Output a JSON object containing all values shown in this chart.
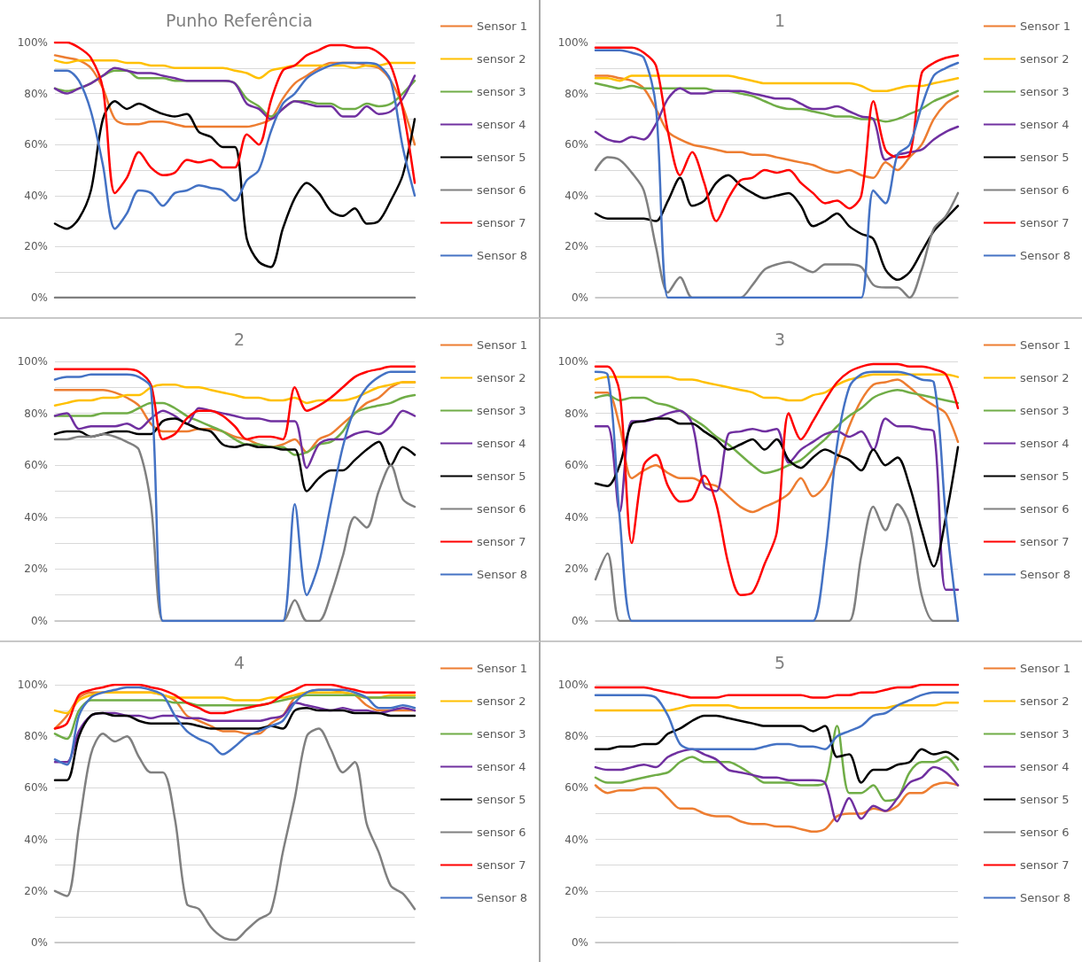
{
  "chart_data": [
    {
      "type": "line",
      "title": "Punho Referência",
      "categories": [
        null,
        null,
        null,
        null,
        null,
        null,
        null,
        null,
        null,
        null,
        null,
        null,
        null,
        null,
        null,
        null,
        null,
        null,
        null,
        null,
        null,
        null,
        null,
        null,
        null,
        null,
        null,
        null,
        null,
        null,
        null
      ],
      "ylim": [
        0,
        100
      ],
      "yticks": [
        {
          "value": 0,
          "label": "0%"
        },
        {
          "value": 10,
          "label": null
        },
        {
          "value": 20,
          "label": "20%"
        },
        {
          "value": 30,
          "label": null
        },
        {
          "value": 40,
          "label": "40%"
        },
        {
          "value": 50,
          "label": null
        },
        {
          "value": 60,
          "label": "60%"
        },
        {
          "value": 70,
          "label": null
        },
        {
          "value": 80,
          "label": "80%"
        },
        {
          "value": 90,
          "label": null
        },
        {
          "value": 100,
          "label": "100%"
        }
      ],
      "grid": "y",
      "legend": "right",
      "tick_labels": "y",
      "marker": "none",
      "line_style": "solid",
      "series": [
        {
          "name": "Sensor 1",
          "color": "#ed7d31",
          "values": [
            95,
            94,
            93,
            90,
            82,
            70,
            68,
            68,
            69,
            69,
            68,
            67,
            67,
            67,
            67,
            67,
            67,
            68,
            70,
            78,
            84,
            87,
            90,
            92,
            92,
            92,
            91,
            90,
            85,
            75,
            60
          ]
        },
        {
          "name": "sensor 2",
          "color": "#ffc000",
          "values": [
            93,
            92,
            93,
            93,
            93,
            93,
            92,
            92,
            91,
            91,
            90,
            90,
            90,
            90,
            90,
            89,
            88,
            86,
            89,
            90,
            91,
            91,
            91,
            91,
            91,
            90,
            91,
            91,
            92,
            92,
            92
          ]
        },
        {
          "name": "sensor 3",
          "color": "#70ad47",
          "values": [
            82,
            81,
            82,
            84,
            87,
            89,
            89,
            86,
            86,
            86,
            85,
            85,
            85,
            85,
            85,
            84,
            78,
            75,
            71,
            74,
            77,
            77,
            76,
            76,
            74,
            74,
            76,
            75,
            76,
            80,
            85
          ]
        },
        {
          "name": "sensor 4",
          "color": "#7030a0",
          "values": [
            82,
            80,
            82,
            84,
            87,
            90,
            89,
            88,
            88,
            87,
            86,
            85,
            85,
            85,
            85,
            84,
            76,
            74,
            70,
            74,
            77,
            76,
            75,
            75,
            71,
            71,
            75,
            72,
            73,
            78,
            87
          ]
        },
        {
          "name": "sensor 5",
          "color": "#000000",
          "values": [
            29,
            27,
            31,
            42,
            70,
            77,
            74,
            76,
            74,
            72,
            71,
            72,
            65,
            63,
            59,
            59,
            23,
            14,
            12,
            27,
            39,
            45,
            41,
            34,
            32,
            35,
            29,
            30,
            38,
            48,
            70
          ]
        },
        {
          "name": "sensor 6",
          "color": "#808080",
          "values": [
            0,
            0,
            0,
            0,
            0,
            0,
            0,
            0,
            0,
            0,
            0,
            0,
            0,
            0,
            0,
            0,
            0,
            0,
            0,
            0,
            0,
            0,
            0,
            0,
            0,
            0,
            0,
            0,
            0,
            0,
            0
          ]
        },
        {
          "name": "sensor 7",
          "color": "#ff0000",
          "values": [
            100,
            100,
            98,
            94,
            82,
            41,
            47,
            57,
            51,
            48,
            49,
            54,
            53,
            54,
            51,
            51,
            64,
            60,
            77,
            89,
            91,
            95,
            97,
            99,
            99,
            98,
            98,
            96,
            91,
            74,
            45
          ]
        },
        {
          "name": "Sensor 8",
          "color": "#4472c4",
          "values": [
            89,
            89,
            85,
            73,
            52,
            27,
            33,
            42,
            41,
            36,
            41,
            42,
            44,
            43,
            42,
            38,
            46,
            50,
            65,
            76,
            80,
            86,
            89,
            91,
            92,
            92,
            92,
            91,
            85,
            59,
            40
          ]
        }
      ]
    },
    {
      "type": "line",
      "title": "1",
      "categories": [
        null,
        null,
        null,
        null,
        null,
        null,
        null,
        null,
        null,
        null,
        null,
        null,
        null,
        null,
        null,
        null,
        null,
        null,
        null,
        null,
        null,
        null,
        null,
        null,
        null,
        null,
        null,
        null,
        null,
        null,
        null
      ],
      "ylim": [
        0,
        100
      ],
      "yticks": [
        {
          "value": 0,
          "label": "0%"
        },
        {
          "value": 10,
          "label": null
        },
        {
          "value": 20,
          "label": "20%"
        },
        {
          "value": 30,
          "label": null
        },
        {
          "value": 40,
          "label": "40%"
        },
        {
          "value": 50,
          "label": null
        },
        {
          "value": 60,
          "label": "60%"
        },
        {
          "value": 70,
          "label": null
        },
        {
          "value": 80,
          "label": "80%"
        },
        {
          "value": 90,
          "label": null
        },
        {
          "value": 100,
          "label": "100%"
        }
      ],
      "grid": "y",
      "legend": "right",
      "tick_labels": "y",
      "marker": "none",
      "line_style": "solid",
      "series": [
        {
          "name": "Sensor 1",
          "color": "#ed7d31",
          "values": [
            87,
            87,
            86,
            85,
            82,
            74,
            65,
            62,
            60,
            59,
            58,
            57,
            57,
            56,
            56,
            55,
            54,
            53,
            52,
            50,
            49,
            50,
            48,
            47,
            53,
            50,
            55,
            60,
            70,
            76,
            79
          ]
        },
        {
          "name": "sensor 2",
          "color": "#ffc000",
          "values": [
            86,
            86,
            85,
            87,
            87,
            87,
            87,
            87,
            87,
            87,
            87,
            87,
            86,
            85,
            84,
            84,
            84,
            84,
            84,
            84,
            84,
            84,
            83,
            81,
            81,
            82,
            83,
            83,
            84,
            85,
            86
          ]
        },
        {
          "name": "sensor 3",
          "color": "#70ad47",
          "values": [
            84,
            83,
            82,
            83,
            82,
            82,
            82,
            82,
            82,
            82,
            81,
            81,
            80,
            79,
            77,
            75,
            74,
            74,
            73,
            72,
            71,
            71,
            70,
            70,
            69,
            70,
            72,
            74,
            77,
            79,
            81
          ]
        },
        {
          "name": "sensor 4",
          "color": "#7030a0",
          "values": [
            65,
            62,
            61,
            63,
            62,
            68,
            78,
            82,
            80,
            80,
            81,
            81,
            81,
            80,
            79,
            78,
            78,
            76,
            74,
            74,
            75,
            73,
            71,
            70,
            54,
            56,
            57,
            58,
            62,
            65,
            67
          ]
        },
        {
          "name": "sensor 5",
          "color": "#000000",
          "values": [
            33,
            31,
            31,
            31,
            31,
            30,
            38,
            47,
            36,
            38,
            45,
            48,
            44,
            41,
            39,
            40,
            41,
            36,
            28,
            30,
            33,
            28,
            25,
            23,
            11,
            7,
            10,
            18,
            26,
            31,
            36
          ]
        },
        {
          "name": "sensor 6",
          "color": "#808080",
          "values": [
            50,
            55,
            54,
            49,
            42,
            20,
            2,
            8,
            0,
            0,
            0,
            0,
            0,
            5,
            11,
            13,
            14,
            12,
            10,
            13,
            13,
            13,
            12,
            5,
            4,
            4,
            0,
            11,
            27,
            32,
            41
          ]
        },
        {
          "name": "sensor 7",
          "color": "#ff0000",
          "values": [
            98,
            98,
            98,
            98,
            96,
            91,
            65,
            48,
            57,
            45,
            30,
            39,
            46,
            47,
            50,
            49,
            50,
            45,
            41,
            37,
            38,
            35,
            40,
            77,
            58,
            55,
            56,
            88,
            92,
            94,
            95
          ]
        },
        {
          "name": "Sensor 8",
          "color": "#4472c4",
          "values": [
            97,
            97,
            97,
            96,
            94,
            75,
            0,
            0,
            0,
            0,
            0,
            0,
            0,
            0,
            0,
            0,
            0,
            0,
            0,
            0,
            0,
            0,
            0,
            42,
            37,
            56,
            60,
            75,
            87,
            90,
            92
          ]
        }
      ]
    },
    {
      "type": "line",
      "title": "2",
      "categories": [
        null,
        null,
        null,
        null,
        null,
        null,
        null,
        null,
        null,
        null,
        null,
        null,
        null,
        null,
        null,
        null,
        null,
        null,
        null,
        null,
        null,
        null,
        null,
        null,
        null,
        null,
        null,
        null,
        null,
        null,
        null
      ],
      "ylim": [
        0,
        100
      ],
      "yticks": [
        {
          "value": 0,
          "label": "0%"
        },
        {
          "value": 10,
          "label": null
        },
        {
          "value": 20,
          "label": "20%"
        },
        {
          "value": 30,
          "label": null
        },
        {
          "value": 40,
          "label": "40%"
        },
        {
          "value": 50,
          "label": null
        },
        {
          "value": 60,
          "label": "60%"
        },
        {
          "value": 70,
          "label": null
        },
        {
          "value": 80,
          "label": "80%"
        },
        {
          "value": 90,
          "label": null
        },
        {
          "value": 100,
          "label": "100%"
        }
      ],
      "grid": "y",
      "legend": "right",
      "tick_labels": "y",
      "marker": "none",
      "line_style": "solid",
      "series": [
        {
          "name": "Sensor 1",
          "color": "#ed7d31",
          "values": [
            89,
            89,
            89,
            89,
            89,
            88,
            86,
            83,
            76,
            73,
            73,
            73,
            74,
            74,
            73,
            71,
            70,
            68,
            67,
            68,
            70,
            65,
            70,
            72,
            76,
            80,
            84,
            86,
            90,
            92,
            92
          ]
        },
        {
          "name": "sensor 2",
          "color": "#ffc000",
          "values": [
            83,
            84,
            85,
            85,
            86,
            86,
            87,
            87,
            90,
            91,
            91,
            90,
            90,
            89,
            88,
            87,
            86,
            86,
            85,
            85,
            86,
            84,
            85,
            85,
            85,
            86,
            88,
            90,
            91,
            92,
            92
          ]
        },
        {
          "name": "sensor 3",
          "color": "#70ad47",
          "values": [
            79,
            79,
            79,
            79,
            80,
            80,
            80,
            82,
            84,
            84,
            82,
            79,
            77,
            75,
            73,
            70,
            68,
            68,
            67,
            67,
            64,
            65,
            68,
            69,
            73,
            80,
            82,
            83,
            84,
            86,
            87
          ]
        },
        {
          "name": "sensor 4",
          "color": "#7030a0",
          "values": [
            79,
            80,
            74,
            75,
            75,
            75,
            76,
            74,
            78,
            81,
            79,
            76,
            82,
            81,
            80,
            79,
            78,
            78,
            77,
            77,
            77,
            59,
            68,
            70,
            70,
            72,
            73,
            72,
            75,
            81,
            79
          ]
        },
        {
          "name": "sensor 5",
          "color": "#000000",
          "values": [
            72,
            73,
            73,
            71,
            72,
            73,
            73,
            72,
            72,
            77,
            78,
            76,
            74,
            73,
            68,
            67,
            68,
            67,
            67,
            66,
            66,
            50,
            55,
            58,
            58,
            62,
            66,
            69,
            60,
            67,
            64
          ]
        },
        {
          "name": "sensor 6",
          "color": "#808080",
          "values": [
            70,
            70,
            71,
            71,
            72,
            71,
            69,
            66,
            45,
            0,
            0,
            0,
            0,
            0,
            0,
            0,
            0,
            0,
            0,
            0,
            8,
            0,
            0,
            10,
            25,
            40,
            36,
            50,
            60,
            47,
            44
          ]
        },
        {
          "name": "sensor 7",
          "color": "#ff0000",
          "values": [
            97,
            97,
            97,
            97,
            97,
            97,
            97,
            96,
            91,
            70,
            72,
            78,
            81,
            81,
            79,
            75,
            70,
            71,
            71,
            70,
            90,
            81,
            83,
            86,
            90,
            94,
            96,
            97,
            98,
            98,
            98
          ]
        },
        {
          "name": "Sensor 8",
          "color": "#4472c4",
          "values": [
            93,
            94,
            94,
            95,
            95,
            95,
            95,
            94,
            90,
            0,
            0,
            0,
            0,
            0,
            0,
            0,
            0,
            0,
            0,
            0,
            45,
            10,
            22,
            45,
            67,
            82,
            90,
            94,
            96,
            96,
            96
          ]
        }
      ]
    },
    {
      "type": "line",
      "title": "3",
      "categories": [
        null,
        null,
        null,
        null,
        null,
        null,
        null,
        null,
        null,
        null,
        null,
        null,
        null,
        null,
        null,
        null,
        null,
        null,
        null,
        null,
        null,
        null,
        null,
        null,
        null,
        null,
        null,
        null,
        null,
        null,
        null
      ],
      "ylim": [
        0,
        100
      ],
      "yticks": [
        {
          "value": 0,
          "label": "0%"
        },
        {
          "value": 10,
          "label": null
        },
        {
          "value": 20,
          "label": "20%"
        },
        {
          "value": 30,
          "label": null
        },
        {
          "value": 40,
          "label": "40%"
        },
        {
          "value": 50,
          "label": null
        },
        {
          "value": 60,
          "label": "60%"
        },
        {
          "value": 70,
          "label": null
        },
        {
          "value": 80,
          "label": "80%"
        },
        {
          "value": 90,
          "label": null
        },
        {
          "value": 100,
          "label": "100%"
        }
      ],
      "grid": "y",
      "legend": "right",
      "tick_labels": "y",
      "marker": "none",
      "line_style": "solid",
      "series": [
        {
          "name": "Sensor 1",
          "color": "#ed7d31",
          "values": [
            88,
            88,
            75,
            55,
            58,
            60,
            57,
            55,
            55,
            53,
            52,
            48,
            44,
            42,
            44,
            46,
            49,
            55,
            48,
            52,
            62,
            75,
            85,
            91,
            92,
            93,
            90,
            86,
            83,
            80,
            69
          ]
        },
        {
          "name": "sensor 2",
          "color": "#ffc000",
          "values": [
            93,
            94,
            94,
            94,
            94,
            94,
            94,
            93,
            93,
            92,
            91,
            90,
            89,
            88,
            86,
            86,
            85,
            85,
            87,
            88,
            91,
            93,
            94,
            95,
            95,
            95,
            95,
            95,
            95,
            95,
            94
          ]
        },
        {
          "name": "sensor 3",
          "color": "#70ad47",
          "values": [
            86,
            87,
            85,
            86,
            86,
            84,
            83,
            81,
            78,
            75,
            71,
            68,
            64,
            60,
            57,
            58,
            60,
            62,
            66,
            70,
            75,
            79,
            82,
            86,
            88,
            89,
            88,
            87,
            86,
            85,
            84
          ]
        },
        {
          "name": "sensor 4",
          "color": "#7030a0",
          "values": [
            75,
            75,
            42,
            77,
            77,
            78,
            80,
            81,
            76,
            52,
            50,
            72,
            73,
            74,
            73,
            74,
            61,
            66,
            69,
            72,
            73,
            71,
            73,
            66,
            78,
            75,
            75,
            74,
            73,
            12,
            12
          ]
        },
        {
          "name": "sensor 5",
          "color": "#000000",
          "values": [
            53,
            52,
            60,
            76,
            77,
            78,
            78,
            76,
            76,
            73,
            70,
            66,
            68,
            70,
            66,
            70,
            62,
            59,
            63,
            66,
            64,
            62,
            58,
            66,
            60,
            63,
            52,
            35,
            21,
            40,
            67
          ]
        },
        {
          "name": "sensor 6",
          "color": "#808080",
          "values": [
            16,
            26,
            0,
            0,
            0,
            0,
            0,
            0,
            0,
            0,
            0,
            0,
            0,
            0,
            0,
            0,
            0,
            0,
            0,
            0,
            0,
            0,
            25,
            44,
            35,
            45,
            37,
            10,
            0,
            0,
            0
          ]
        },
        {
          "name": "sensor 7",
          "color": "#ff0000",
          "values": [
            98,
            98,
            88,
            30,
            60,
            64,
            52,
            46,
            47,
            56,
            45,
            22,
            10,
            11,
            22,
            34,
            80,
            70,
            77,
            85,
            92,
            96,
            98,
            99,
            99,
            99,
            98,
            98,
            97,
            95,
            82
          ]
        },
        {
          "name": "Sensor 8",
          "color": "#4472c4",
          "values": [
            96,
            95,
            40,
            0,
            0,
            0,
            0,
            0,
            0,
            0,
            0,
            0,
            0,
            0,
            0,
            0,
            0,
            0,
            0,
            25,
            68,
            90,
            95,
            96,
            96,
            96,
            95,
            93,
            92,
            40,
            0
          ]
        }
      ]
    },
    {
      "type": "line",
      "title": "4",
      "categories": [
        null,
        null,
        null,
        null,
        null,
        null,
        null,
        null,
        null,
        null,
        null,
        null,
        null,
        null,
        null,
        null,
        null,
        null,
        null,
        null,
        null,
        null,
        null,
        null,
        null,
        null,
        null,
        null,
        null,
        null,
        null
      ],
      "ylim": [
        0,
        100
      ],
      "yticks": [
        {
          "value": 0,
          "label": "0%"
        },
        {
          "value": 10,
          "label": null
        },
        {
          "value": 20,
          "label": "20%"
        },
        {
          "value": 30,
          "label": null
        },
        {
          "value": 40,
          "label": "40%"
        },
        {
          "value": 50,
          "label": null
        },
        {
          "value": 60,
          "label": "60%"
        },
        {
          "value": 70,
          "label": null
        },
        {
          "value": 80,
          "label": "80%"
        },
        {
          "value": 90,
          "label": null
        },
        {
          "value": 100,
          "label": "100%"
        }
      ],
      "grid": "y",
      "legend": "right",
      "tick_labels": "y",
      "marker": "none",
      "line_style": "solid",
      "series": [
        {
          "name": "Sensor 1",
          "color": "#ed7d31",
          "values": [
            83,
            88,
            95,
            97,
            97,
            97,
            97,
            97,
            97,
            96,
            94,
            88,
            86,
            84,
            82,
            82,
            81,
            81,
            85,
            88,
            95,
            97,
            98,
            98,
            97,
            96,
            92,
            90,
            90,
            90,
            90
          ]
        },
        {
          "name": "sensor 2",
          "color": "#ffc000",
          "values": [
            90,
            89,
            94,
            96,
            97,
            97,
            97,
            97,
            97,
            96,
            95,
            95,
            95,
            95,
            95,
            94,
            94,
            94,
            95,
            95,
            96,
            97,
            97,
            97,
            97,
            96,
            95,
            95,
            96,
            96,
            96
          ]
        },
        {
          "name": "sensor 3",
          "color": "#70ad47",
          "values": [
            81,
            79,
            90,
            94,
            94,
            94,
            94,
            94,
            94,
            94,
            93,
            93,
            92,
            92,
            92,
            92,
            92,
            92,
            93,
            94,
            95,
            96,
            96,
            96,
            96,
            96,
            95,
            95,
            95,
            95,
            95
          ]
        },
        {
          "name": "sensor 4",
          "color": "#7030a0",
          "values": [
            70,
            70,
            82,
            88,
            89,
            89,
            88,
            88,
            87,
            88,
            88,
            87,
            87,
            86,
            86,
            86,
            86,
            86,
            87,
            88,
            93,
            92,
            91,
            90,
            91,
            90,
            90,
            89,
            90,
            91,
            90
          ]
        },
        {
          "name": "sensor 5",
          "color": "#000000",
          "values": [
            63,
            63,
            80,
            88,
            89,
            88,
            88,
            86,
            85,
            85,
            85,
            85,
            84,
            83,
            83,
            83,
            83,
            83,
            84,
            83,
            90,
            91,
            90,
            90,
            90,
            89,
            89,
            89,
            88,
            88,
            88
          ]
        },
        {
          "name": "sensor 6",
          "color": "#808080",
          "values": [
            20,
            18,
            45,
            73,
            81,
            78,
            80,
            72,
            66,
            66,
            48,
            15,
            13,
            6,
            2,
            1,
            5,
            9,
            12,
            35,
            56,
            80,
            83,
            75,
            66,
            70,
            46,
            35,
            22,
            19,
            13
          ]
        },
        {
          "name": "sensor 7",
          "color": "#ff0000",
          "values": [
            83,
            85,
            96,
            98,
            99,
            100,
            100,
            100,
            99,
            98,
            96,
            93,
            91,
            89,
            89,
            90,
            91,
            92,
            93,
            96,
            98,
            100,
            100,
            100,
            99,
            98,
            97,
            97,
            97,
            97,
            97
          ]
        },
        {
          "name": "Sensor 8",
          "color": "#4472c4",
          "values": [
            71,
            69,
            88,
            95,
            97,
            98,
            99,
            99,
            98,
            96,
            88,
            82,
            79,
            77,
            73,
            76,
            80,
            82,
            84,
            86,
            93,
            97,
            98,
            98,
            98,
            97,
            95,
            91,
            91,
            92,
            91
          ]
        }
      ]
    },
    {
      "type": "line",
      "title": "5",
      "categories": [
        null,
        null,
        null,
        null,
        null,
        null,
        null,
        null,
        null,
        null,
        null,
        null,
        null,
        null,
        null,
        null,
        null,
        null,
        null,
        null,
        null,
        null,
        null,
        null,
        null,
        null,
        null,
        null,
        null,
        null,
        null
      ],
      "ylim": [
        0,
        100
      ],
      "yticks": [
        {
          "value": 0,
          "label": "0%"
        },
        {
          "value": 10,
          "label": null
        },
        {
          "value": 20,
          "label": "20%"
        },
        {
          "value": 30,
          "label": null
        },
        {
          "value": 40,
          "label": "40%"
        },
        {
          "value": 50,
          "label": null
        },
        {
          "value": 60,
          "label": "60%"
        },
        {
          "value": 70,
          "label": null
        },
        {
          "value": 80,
          "label": "80%"
        },
        {
          "value": 90,
          "label": null
        },
        {
          "value": 100,
          "label": "100%"
        }
      ],
      "grid": "y",
      "legend": "right",
      "tick_labels": "y",
      "marker": "none",
      "line_style": "solid",
      "series": [
        {
          "name": "Sensor 1",
          "color": "#ed7d31",
          "values": [
            61,
            58,
            59,
            59,
            60,
            60,
            56,
            52,
            52,
            50,
            49,
            49,
            47,
            46,
            46,
            45,
            45,
            44,
            43,
            44,
            49,
            50,
            50,
            52,
            51,
            53,
            58,
            58,
            61,
            62,
            61
          ]
        },
        {
          "name": "sensor 2",
          "color": "#ffc000",
          "values": [
            90,
            90,
            90,
            90,
            90,
            90,
            90,
            91,
            92,
            92,
            92,
            92,
            91,
            91,
            91,
            91,
            91,
            91,
            91,
            91,
            91,
            91,
            91,
            91,
            91,
            92,
            92,
            92,
            92,
            93,
            93
          ]
        },
        {
          "name": "sensor 3",
          "color": "#70ad47",
          "values": [
            64,
            62,
            62,
            63,
            64,
            65,
            66,
            70,
            72,
            70,
            70,
            70,
            68,
            65,
            62,
            62,
            62,
            61,
            61,
            62,
            84,
            58,
            58,
            61,
            55,
            56,
            66,
            70,
            70,
            72,
            67
          ]
        },
        {
          "name": "sensor 4",
          "color": "#7030a0",
          "values": [
            68,
            67,
            67,
            68,
            69,
            68,
            72,
            74,
            75,
            73,
            71,
            67,
            66,
            65,
            64,
            64,
            63,
            63,
            63,
            62,
            47,
            56,
            48,
            53,
            51,
            56,
            62,
            64,
            68,
            66,
            61
          ]
        },
        {
          "name": "sensor 5",
          "color": "#000000",
          "values": [
            75,
            75,
            76,
            76,
            77,
            77,
            81,
            83,
            86,
            88,
            88,
            87,
            86,
            85,
            84,
            84,
            84,
            84,
            82,
            84,
            72,
            73,
            62,
            67,
            67,
            69,
            70,
            75,
            73,
            74,
            71
          ]
        },
        {
          "name": "sensor 6",
          "color": "#808080",
          "values": [
            null,
            null,
            null,
            null,
            null,
            null,
            null,
            null,
            null,
            null,
            null,
            null,
            null,
            null,
            null,
            null,
            null,
            null,
            null,
            null,
            null,
            null,
            null,
            null,
            null,
            null,
            null,
            null,
            null,
            null,
            null
          ]
        },
        {
          "name": "sensor 7",
          "color": "#ff0000",
          "values": [
            99,
            99,
            99,
            99,
            99,
            98,
            97,
            96,
            95,
            95,
            95,
            96,
            96,
            96,
            96,
            96,
            96,
            96,
            95,
            95,
            96,
            96,
            97,
            97,
            98,
            99,
            99,
            100,
            100,
            100,
            100
          ]
        },
        {
          "name": "Sensor 8",
          "color": "#4472c4",
          "values": [
            96,
            96,
            96,
            96,
            96,
            95,
            88,
            77,
            75,
            75,
            75,
            75,
            75,
            75,
            76,
            77,
            77,
            76,
            76,
            75,
            80,
            82,
            84,
            88,
            89,
            92,
            94,
            96,
            97,
            97,
            97
          ]
        }
      ]
    }
  ]
}
